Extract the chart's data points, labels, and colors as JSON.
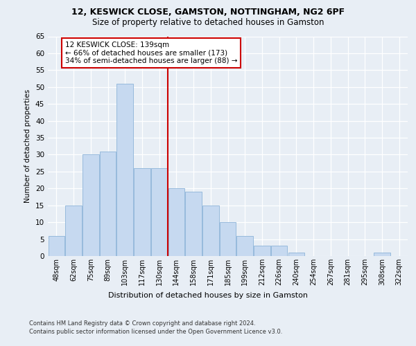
{
  "title1": "12, KESWICK CLOSE, GAMSTON, NOTTINGHAM, NG2 6PF",
  "title2": "Size of property relative to detached houses in Gamston",
  "xlabel": "Distribution of detached houses by size in Gamston",
  "ylabel": "Number of detached properties",
  "categories": [
    "48sqm",
    "62sqm",
    "75sqm",
    "89sqm",
    "103sqm",
    "117sqm",
    "130sqm",
    "144sqm",
    "158sqm",
    "171sqm",
    "185sqm",
    "199sqm",
    "212sqm",
    "226sqm",
    "240sqm",
    "254sqm",
    "267sqm",
    "281sqm",
    "295sqm",
    "308sqm",
    "322sqm"
  ],
  "values": [
    6,
    15,
    30,
    31,
    51,
    26,
    26,
    20,
    19,
    15,
    10,
    6,
    3,
    3,
    1,
    0,
    0,
    0,
    0,
    1,
    0
  ],
  "bar_color": "#c6d9f0",
  "bar_edge_color": "#8cb4d8",
  "vline_color": "#cc0000",
  "annotation_text": "12 KESWICK CLOSE: 139sqm\n← 66% of detached houses are smaller (173)\n34% of semi-detached houses are larger (88) →",
  "annotation_box_facecolor": "#ffffff",
  "annotation_box_edgecolor": "#cc0000",
  "ylim": [
    0,
    65
  ],
  "yticks": [
    0,
    5,
    10,
    15,
    20,
    25,
    30,
    35,
    40,
    45,
    50,
    55,
    60,
    65
  ],
  "footer1": "Contains HM Land Registry data © Crown copyright and database right 2024.",
  "footer2": "Contains public sector information licensed under the Open Government Licence v3.0.",
  "bg_color": "#e8eef5",
  "plot_bg_color": "#e8eef5",
  "title1_fontsize": 9,
  "title2_fontsize": 8.5
}
